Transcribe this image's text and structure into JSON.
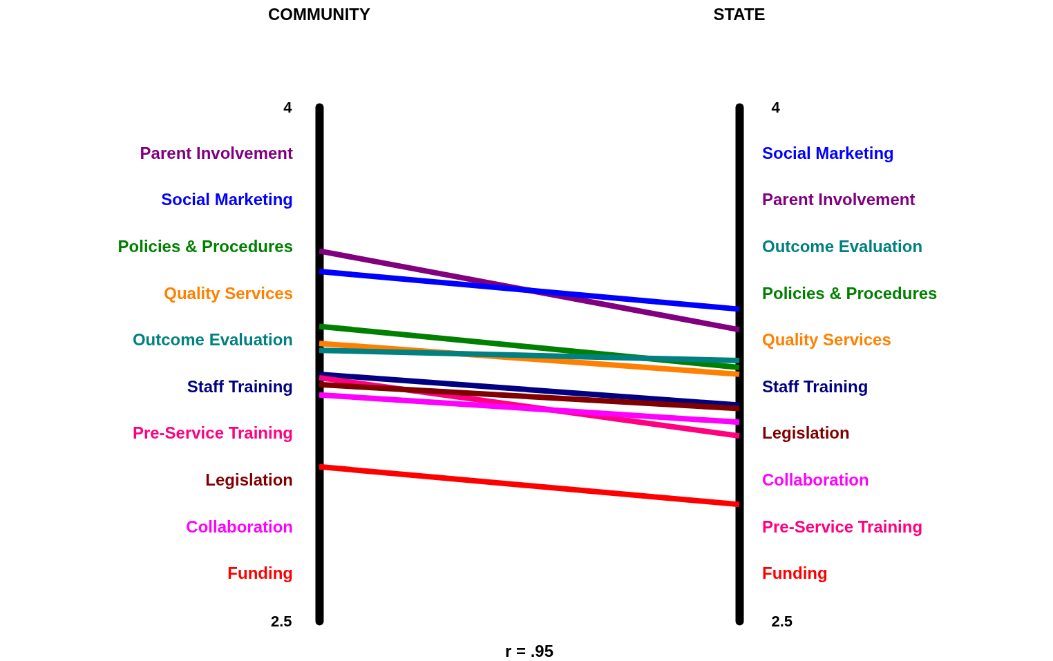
{
  "chart_data": {
    "type": "line",
    "categories": [
      "COMMUNITY",
      "STATE"
    ],
    "ylim": [
      2.5,
      4
    ],
    "yticks": [
      4,
      2.5
    ],
    "y2lim": [
      2.5,
      4
    ],
    "y2ticks": [
      4,
      2.5
    ],
    "annotations": [
      "r = .95"
    ],
    "series": [
      {
        "name": "Parent Involvement",
        "color": "#800080",
        "values": [
          3.58,
          3.35
        ]
      },
      {
        "name": "Social Marketing",
        "color": "#0000ff",
        "values": [
          3.52,
          3.41
        ]
      },
      {
        "name": "Policies & Procedures",
        "color": "#008000",
        "values": [
          3.36,
          3.24
        ]
      },
      {
        "name": "Quality Services",
        "color": "#ff8000",
        "values": [
          3.31,
          3.22
        ]
      },
      {
        "name": "Outcome Evaluation",
        "color": "#008080",
        "values": [
          3.29,
          3.26
        ]
      },
      {
        "name": "Staff Training",
        "color": "#000080",
        "values": [
          3.22,
          3.13
        ]
      },
      {
        "name": "Pre-Service Training",
        "color": "#ff0080",
        "values": [
          3.21,
          3.04
        ]
      },
      {
        "name": "Legislation",
        "color": "#800000",
        "values": [
          3.19,
          3.12
        ]
      },
      {
        "name": "Collaboration",
        "color": "#ff00ff",
        "values": [
          3.16,
          3.08
        ]
      },
      {
        "name": "Funding",
        "color": "#ff0000",
        "values": [
          2.95,
          2.84
        ]
      }
    ]
  }
}
